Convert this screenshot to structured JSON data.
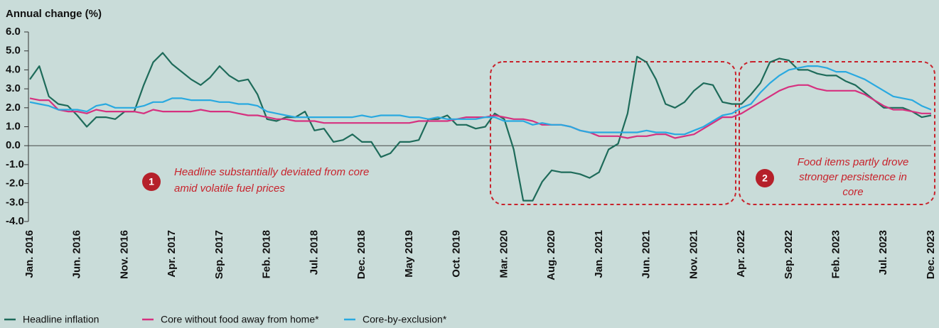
{
  "chart_data": {
    "type": "line",
    "y_label": "Annual change (%)",
    "categories": [
      "Jan. 2016",
      null,
      null,
      null,
      null,
      "Jun. 2016",
      null,
      null,
      null,
      null,
      "Nov. 2016",
      null,
      null,
      null,
      null,
      "Apr. 2017",
      null,
      null,
      null,
      null,
      "Sep. 2017",
      null,
      null,
      null,
      null,
      "Feb. 2018",
      null,
      null,
      null,
      null,
      "Jul. 2018",
      null,
      null,
      null,
      null,
      "Dec. 2018",
      null,
      null,
      null,
      null,
      "May 2019",
      null,
      null,
      null,
      null,
      "Oct. 2019",
      null,
      null,
      null,
      null,
      "Mar. 2020",
      null,
      null,
      null,
      null,
      "Aug. 2020",
      null,
      null,
      null,
      null,
      "Jan. 2021",
      null,
      null,
      null,
      null,
      "Jun. 2021",
      null,
      null,
      null,
      null,
      "Nov. 2021",
      null,
      null,
      null,
      null,
      "Apr. 2022",
      null,
      null,
      null,
      null,
      "Sep. 2022",
      null,
      null,
      null,
      null,
      "Feb. 2023",
      null,
      null,
      null,
      null,
      "Jul. 2023",
      null,
      null,
      null,
      null,
      "Dec. 2023"
    ],
    "series": [
      {
        "name": "Headline inflation",
        "color": "#1e6b5a",
        "values": [
          3.5,
          4.2,
          2.6,
          2.2,
          2.1,
          1.6,
          1.0,
          1.5,
          1.5,
          1.4,
          1.8,
          1.8,
          3.2,
          4.4,
          4.9,
          4.3,
          3.9,
          3.5,
          3.2,
          3.6,
          4.2,
          3.7,
          3.4,
          3.5,
          2.7,
          1.4,
          1.3,
          1.5,
          1.5,
          1.8,
          0.8,
          0.9,
          0.2,
          0.3,
          0.6,
          0.2,
          0.2,
          -0.6,
          -0.4,
          0.2,
          0.2,
          0.3,
          1.4,
          1.4,
          1.6,
          1.1,
          1.1,
          0.9,
          1.0,
          1.7,
          1.4,
          -0.2,
          -2.9,
          -2.9,
          -1.9,
          -1.3,
          -1.4,
          -1.4,
          -1.5,
          -1.7,
          -1.4,
          -0.2,
          0.1,
          1.7,
          4.7,
          4.4,
          3.5,
          2.2,
          2.0,
          2.3,
          2.9,
          3.3,
          3.2,
          2.3,
          2.2,
          2.2,
          2.7,
          3.3,
          4.4,
          4.6,
          4.5,
          4.0,
          4.0,
          3.8,
          3.7,
          3.7,
          3.4,
          3.2,
          2.8,
          2.4,
          2.0,
          2.0,
          2.0,
          1.8,
          1.5,
          1.6
        ]
      },
      {
        "name": "Core without food away from home*",
        "color": "#d6307f",
        "values": [
          2.5,
          2.4,
          2.4,
          1.9,
          1.8,
          1.8,
          1.7,
          1.9,
          1.8,
          1.8,
          1.8,
          1.8,
          1.7,
          1.9,
          1.8,
          1.8,
          1.8,
          1.8,
          1.9,
          1.8,
          1.8,
          1.8,
          1.7,
          1.6,
          1.6,
          1.5,
          1.4,
          1.4,
          1.3,
          1.3,
          1.3,
          1.2,
          1.2,
          1.2,
          1.2,
          1.2,
          1.2,
          1.2,
          1.2,
          1.2,
          1.2,
          1.3,
          1.3,
          1.3,
          1.3,
          1.4,
          1.5,
          1.5,
          1.5,
          1.6,
          1.5,
          1.4,
          1.4,
          1.3,
          1.1,
          1.1,
          1.1,
          1.0,
          0.8,
          0.7,
          0.5,
          0.5,
          0.5,
          0.4,
          0.5,
          0.5,
          0.6,
          0.6,
          0.4,
          0.5,
          0.6,
          0.9,
          1.2,
          1.5,
          1.5,
          1.7,
          2.0,
          2.3,
          2.6,
          2.9,
          3.1,
          3.2,
          3.2,
          3.0,
          2.9,
          2.9,
          2.9,
          2.9,
          2.7,
          2.4,
          2.1,
          1.9,
          1.9,
          1.8,
          1.7,
          1.7
        ]
      },
      {
        "name": "Core-by-exclusion*",
        "color": "#29a9e0",
        "values": [
          2.3,
          2.2,
          2.1,
          1.9,
          1.9,
          1.9,
          1.8,
          2.1,
          2.2,
          2.0,
          2.0,
          2.0,
          2.1,
          2.3,
          2.3,
          2.5,
          2.5,
          2.4,
          2.4,
          2.4,
          2.3,
          2.3,
          2.2,
          2.2,
          2.1,
          1.8,
          1.7,
          1.6,
          1.5,
          1.5,
          1.5,
          1.5,
          1.5,
          1.5,
          1.5,
          1.6,
          1.5,
          1.6,
          1.6,
          1.6,
          1.5,
          1.5,
          1.4,
          1.5,
          1.4,
          1.4,
          1.4,
          1.4,
          1.5,
          1.5,
          1.3,
          1.3,
          1.3,
          1.1,
          1.2,
          1.1,
          1.1,
          1.0,
          0.8,
          0.7,
          0.7,
          0.7,
          0.7,
          0.7,
          0.7,
          0.8,
          0.7,
          0.7,
          0.6,
          0.6,
          0.8,
          1.0,
          1.3,
          1.6,
          1.7,
          2.0,
          2.2,
          2.8,
          3.3,
          3.7,
          4.0,
          4.1,
          4.2,
          4.2,
          4.1,
          3.9,
          3.9,
          3.7,
          3.5,
          3.2,
          2.9,
          2.6,
          2.5,
          2.4,
          2.1,
          1.9
        ]
      }
    ],
    "ylim": [
      -4,
      6
    ],
    "yticks": [
      {
        "value": 6,
        "label": "6.0"
      },
      {
        "value": 5,
        "label": "5.0"
      },
      {
        "value": 4,
        "label": "4.0"
      },
      {
        "value": 3,
        "label": "3.0"
      },
      {
        "value": 2,
        "label": "2.0"
      },
      {
        "value": 1,
        "label": "1.0"
      },
      {
        "value": 0,
        "label": "0.0"
      },
      {
        "value": -1,
        "label": "-1.0"
      },
      {
        "value": -2,
        "label": "-2.0"
      },
      {
        "value": -3,
        "label": "-3.0"
      },
      {
        "value": -4,
        "label": "-4.0"
      }
    ],
    "annotations": [
      {
        "number": "1",
        "lines": [
          "Headline substantially deviated from core",
          "amid volatile fuel prices"
        ]
      },
      {
        "number": "2",
        "lines": [
          "Food items partly drove",
          "stronger persistence in",
          "core"
        ]
      }
    ]
  }
}
